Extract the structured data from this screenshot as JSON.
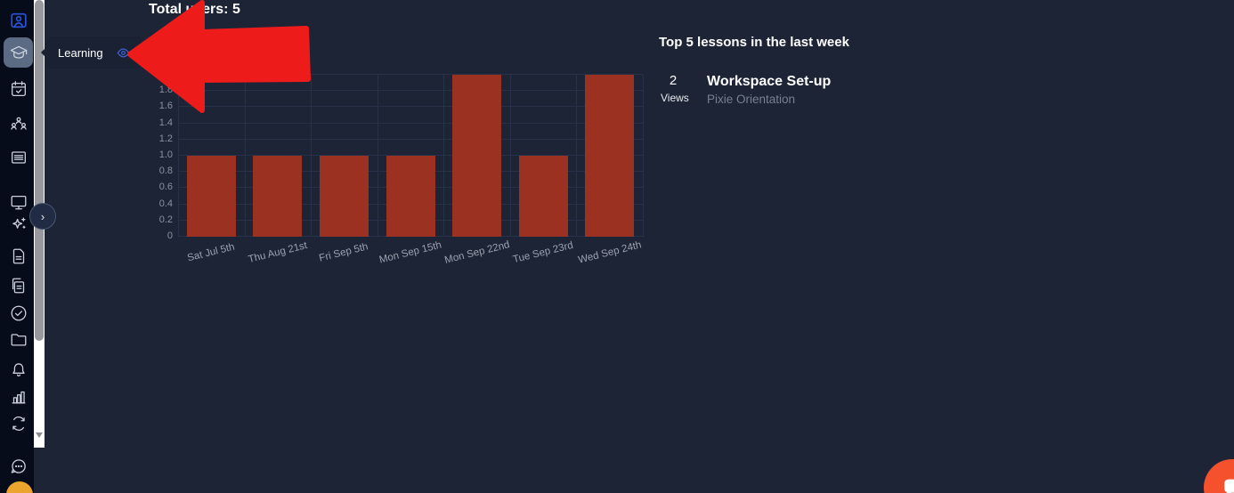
{
  "header": {
    "total_users": "Total users: 5"
  },
  "sidebar": {
    "items": [
      {
        "icon": "profile-badge-icon"
      },
      {
        "icon": "learning-icon",
        "selected": true,
        "label": "Learning"
      },
      {
        "icon": "calendar-check-icon"
      },
      {
        "icon": "group-icon"
      },
      {
        "icon": "document-list-icon"
      },
      {
        "icon": "monitor-icon"
      },
      {
        "icon": "sparkles-icon"
      },
      {
        "icon": "file-icon"
      },
      {
        "icon": "files-copy-icon"
      },
      {
        "icon": "check-circle-icon"
      },
      {
        "icon": "folder-icon"
      },
      {
        "icon": "bell-icon"
      },
      {
        "icon": "bar-chart-icon"
      },
      {
        "icon": "sync-icon"
      },
      {
        "icon": "partial-icon"
      },
      {
        "icon": "chat-bubble-icon"
      }
    ]
  },
  "tooltip": {
    "label": "Learning",
    "icon": "eye-icon"
  },
  "chart_data": {
    "type": "bar",
    "title": "Total users: 5",
    "categories": [
      "Sat Jul 5th",
      "Thu Aug 21st",
      "Fri Sep 5th",
      "Mon Sep 15th",
      "Mon Sep 22nd",
      "Tue Sep 23rd",
      "Wed Sep 24th"
    ],
    "values": [
      1,
      1,
      1,
      1,
      2,
      1,
      2
    ],
    "xlabel": "",
    "ylabel": "",
    "ylim": [
      0,
      2
    ],
    "ytick_step": 0.2,
    "yticks": [
      "0",
      "0.2",
      "0.4",
      "0.6",
      "0.8",
      "1.0",
      "1.2",
      "1.4",
      "1.6",
      "1.8",
      "2.0"
    ],
    "bar_color": "#9a3121",
    "grid": true,
    "legend": false
  },
  "lessons_panel": {
    "title": "Top 5 lessons in the last week",
    "items": [
      {
        "views": "2",
        "views_label": "Views",
        "title": "Workspace Set-up",
        "subtitle": "Pixie Orientation"
      }
    ]
  },
  "annotation": {
    "shape": "big-left-arrow",
    "color": "#ee1b1b"
  },
  "colors": {
    "main_bg": "#1c2436",
    "sidebar_bg": "#070c1b",
    "tooltip_bg": "#192133",
    "bar": "#9a3121",
    "accent_red": "#ee1b1b",
    "launcher_orange": "#f5512d",
    "eye_blue": "#4468e2",
    "avatar_yellow": "#eba42e",
    "selected_item_bg": "#5c6b84"
  }
}
